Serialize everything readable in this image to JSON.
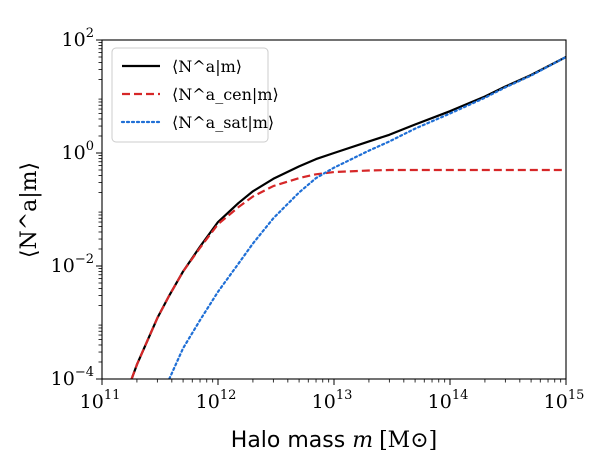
{
  "chart_data": {
    "type": "line",
    "xlabel_text": "Halo mass ",
    "xlabel_var": "m",
    "xlabel_unit": "[M⊙]",
    "ylabel": "⟨N^a|m⟩",
    "xscale": "log",
    "yscale": "log",
    "xlim": [
      100000000000.0,
      1000000000000000.0
    ],
    "ylim": [
      0.0001,
      100
    ],
    "xticks": [
      {
        "value": 100000000000.0,
        "base": "10",
        "exp": "11"
      },
      {
        "value": 1000000000000.0,
        "base": "10",
        "exp": "12"
      },
      {
        "value": 10000000000000.0,
        "base": "10",
        "exp": "13"
      },
      {
        "value": 100000000000000.0,
        "base": "10",
        "exp": "14"
      },
      {
        "value": 1000000000000000.0,
        "base": "10",
        "exp": "15"
      }
    ],
    "yticks": [
      {
        "value": 0.0001,
        "base": "10",
        "exp": "−4"
      },
      {
        "value": 0.01,
        "base": "10",
        "exp": "−2"
      },
      {
        "value": 1,
        "base": "10",
        "exp": "0"
      },
      {
        "value": 100,
        "base": "10",
        "exp": "2"
      }
    ],
    "legend_position": "top-left",
    "x": [
      180000000000.0,
      200000000000.0,
      300000000000.0,
      380000000000.0,
      500000000000.0,
      700000000000.0,
      1000000000000.0,
      1500000000000.0,
      2000000000000.0,
      3000000000000.0,
      5000000000000.0,
      7000000000000.0,
      10000000000000.0,
      20000000000000.0,
      30000000000000.0,
      50000000000000.0,
      100000000000000.0,
      200000000000000.0,
      300000000000000.0,
      500000000000000.0,
      1000000000000000.0
    ],
    "series": [
      {
        "name": "⟨N^a|m⟩",
        "color": "#000000",
        "dash": "solid",
        "values": [
          0.0001,
          0.00018,
          0.0012,
          0.003,
          0.008,
          0.022,
          0.06,
          0.13,
          0.21,
          0.35,
          0.58,
          0.78,
          1.0,
          1.6,
          2.1,
          3.2,
          5.5,
          10,
          15,
          24,
          50
        ]
      },
      {
        "name": "⟨N^a_cen|m⟩",
        "color": "#d62728",
        "dash": "dashed",
        "values": [
          0.0001,
          0.00018,
          0.0012,
          0.003,
          0.008,
          0.021,
          0.055,
          0.11,
          0.17,
          0.26,
          0.36,
          0.42,
          0.46,
          0.49,
          0.5,
          0.5,
          0.5,
          0.5,
          0.5,
          0.5,
          0.5
        ]
      },
      {
        "name": "⟨N^a_sat|m⟩",
        "color": "#1f6fd6",
        "dash": "dotted",
        "values": [
          null,
          null,
          null,
          0.0001,
          0.00035,
          0.0011,
          0.0035,
          0.011,
          0.025,
          0.07,
          0.2,
          0.36,
          0.55,
          1.1,
          1.6,
          2.7,
          5.0,
          9.5,
          14.5,
          23.5,
          50
        ]
      }
    ]
  }
}
